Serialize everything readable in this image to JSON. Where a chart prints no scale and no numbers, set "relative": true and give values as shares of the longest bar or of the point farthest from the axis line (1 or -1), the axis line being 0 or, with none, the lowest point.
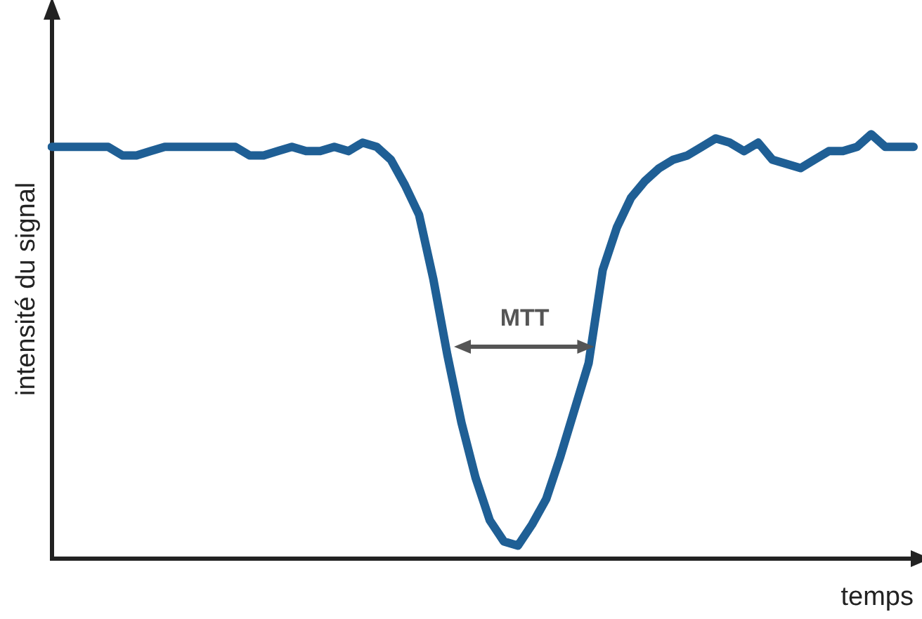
{
  "chart_data": {
    "type": "line",
    "relative": true,
    "xlabel": "temps",
    "ylabel": "intensité du signal",
    "annotations": [
      "MTT"
    ],
    "grid": false,
    "legend": false,
    "marker": "none",
    "line_style": "solid",
    "categories": [
      null,
      null,
      null,
      null,
      null,
      null,
      null,
      null,
      null,
      null,
      null,
      null,
      null,
      null,
      null,
      null,
      null,
      null,
      null,
      null,
      null,
      null,
      null,
      null,
      null,
      null,
      null,
      null,
      null,
      null,
      null,
      null,
      null,
      null,
      null,
      null,
      null,
      null,
      null,
      null,
      null,
      null,
      null,
      null,
      null,
      null,
      null,
      null,
      null,
      null,
      null,
      null,
      null,
      null,
      null,
      null,
      null,
      null,
      null,
      null,
      null,
      null
    ],
    "series": [
      {
        "color": "#1f5f95",
        "values": [
          0.97,
          0.97,
          0.97,
          0.97,
          0.97,
          0.95,
          0.95,
          0.96,
          0.97,
          0.97,
          0.97,
          0.97,
          0.97,
          0.97,
          0.95,
          0.95,
          0.96,
          0.97,
          0.96,
          0.96,
          0.97,
          0.96,
          0.98,
          0.97,
          0.94,
          0.88,
          0.81,
          0.66,
          0.48,
          0.32,
          0.19,
          0.09,
          0.04,
          0.03,
          0.08,
          0.14,
          0.24,
          0.35,
          0.46,
          0.68,
          0.78,
          0.85,
          0.89,
          0.92,
          0.94,
          0.95,
          0.97,
          0.99,
          0.98,
          0.96,
          0.98,
          0.94,
          0.93,
          0.92,
          0.94,
          0.96,
          0.96,
          0.97,
          1,
          0.97,
          0.97,
          0.97
        ]
      }
    ]
  }
}
